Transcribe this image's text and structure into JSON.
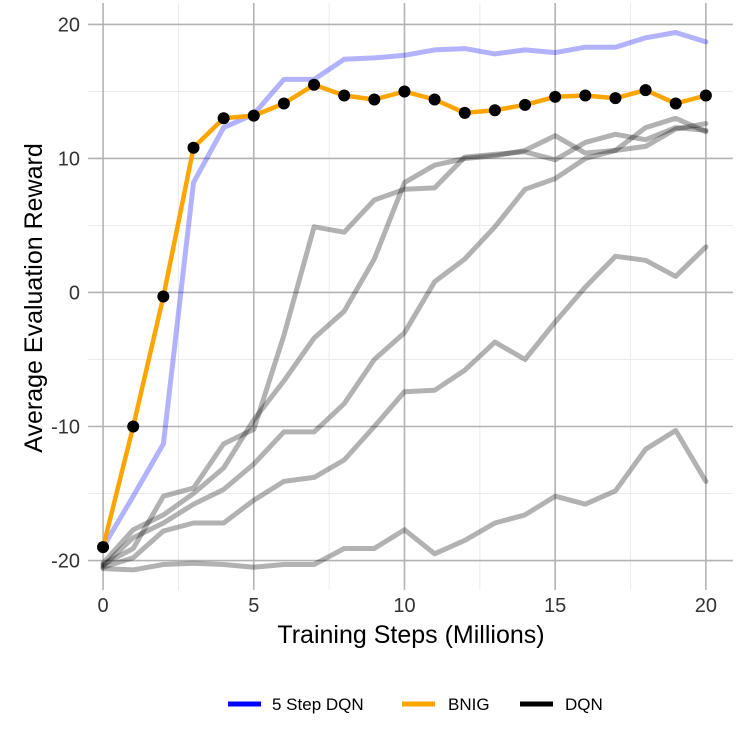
{
  "chart_data": {
    "type": "line",
    "xlabel": "Training Steps (Millions)",
    "ylabel": "Average Evaluation Reward",
    "xlim": [
      -0.5,
      20.9
    ],
    "ylim": [
      -22.2,
      21.6
    ],
    "x_ticks": [
      0,
      5,
      10,
      15,
      20
    ],
    "y_ticks": [
      -20,
      -10,
      0,
      10,
      20
    ],
    "x_tick_labels": [
      "0",
      "5",
      "10",
      "15",
      "20"
    ],
    "y_tick_labels": [
      "-20",
      "-10",
      "0",
      "10",
      "20"
    ],
    "grid": true,
    "legend_position": "bottom",
    "legend": [
      {
        "label": "5 Step DQN",
        "color": "#0000FF"
      },
      {
        "label": "BNIG",
        "color": "#FFA500"
      },
      {
        "label": "DQN",
        "color": "#000000"
      }
    ],
    "series": [
      {
        "name": "5 Step DQN",
        "color": "#0000FF",
        "opacity": 0.3,
        "markers": false,
        "x": [
          0,
          1,
          2,
          3,
          4,
          5,
          6,
          7,
          8,
          9,
          10,
          11,
          12,
          13,
          14,
          15,
          16,
          17,
          18,
          19,
          20
        ],
        "y": [
          -19,
          -15.2,
          -11.3,
          8.2,
          12.3,
          13.3,
          15.9,
          15.9,
          17.4,
          17.5,
          17.7,
          18.1,
          18.2,
          17.8,
          18.1,
          17.9,
          18.3,
          18.3,
          19.0,
          19.4,
          18.7
        ]
      },
      {
        "name": "BNIG",
        "color": "#FFA500",
        "opacity": 1.0,
        "markers": true,
        "x": [
          0,
          1,
          2,
          3,
          4,
          5,
          6,
          7,
          8,
          9,
          10,
          11,
          12,
          13,
          14,
          15,
          16,
          17,
          18,
          19,
          20
        ],
        "y": [
          -19,
          -10,
          -0.3,
          10.8,
          13.0,
          13.2,
          14.1,
          15.5,
          14.7,
          14.4,
          15.0,
          14.4,
          13.4,
          13.6,
          14.0,
          14.6,
          14.7,
          14.5,
          15.1,
          14.1,
          14.7
        ]
      },
      {
        "name": "DQN",
        "color": "#000000",
        "opacity": 0.3,
        "markers": false,
        "x": [
          0,
          1,
          2,
          3,
          4,
          5,
          6,
          7,
          8,
          9,
          10,
          11,
          12,
          13,
          14,
          15,
          16,
          17,
          18,
          19,
          20
        ],
        "y": [
          -20.3,
          -19.1,
          -15.2,
          -14.6,
          -11.3,
          -10.2,
          -3.2,
          4.9,
          4.5,
          6.9,
          7.7,
          7.8,
          10.1,
          10.3,
          10.5,
          9.9,
          11.2,
          11.8,
          11.4,
          12.3,
          12.1
        ]
      },
      {
        "name": "DQN",
        "color": "#000000",
        "opacity": 0.3,
        "markers": false,
        "x": [
          0,
          1,
          2,
          3,
          4,
          5,
          6,
          7,
          8,
          9,
          10,
          11,
          12,
          13,
          14,
          15,
          16,
          17,
          18,
          19,
          20
        ],
        "y": [
          -20.6,
          -20.7,
          -20.3,
          -20.2,
          -20.3,
          -20.5,
          -20.3,
          -20.3,
          -19.1,
          -19.1,
          -17.7,
          -19.5,
          -18.5,
          -17.2,
          -16.6,
          -15.2,
          -15.8,
          -14.8,
          -11.7,
          -10.3,
          -14.1
        ]
      },
      {
        "name": "DQN",
        "color": "#000000",
        "opacity": 0.3,
        "markers": false,
        "x": [
          0,
          1,
          2,
          3,
          4,
          5,
          6,
          7,
          8,
          9,
          10,
          11,
          12,
          13,
          14,
          15,
          16,
          17,
          18,
          19,
          20
        ],
        "y": [
          -20.4,
          -18.3,
          -17.2,
          -15.8,
          -14.7,
          -12.8,
          -10.4,
          -10.4,
          -8.3,
          -5.0,
          -3.0,
          0.8,
          2.5,
          4.9,
          7.7,
          8.5,
          10.0,
          10.6,
          10.9,
          12.2,
          12.6
        ]
      },
      {
        "name": "DQN",
        "color": "#000000",
        "opacity": 0.3,
        "markers": false,
        "x": [
          0,
          1,
          2,
          3,
          4,
          5,
          6,
          7,
          8,
          9,
          10,
          11,
          12,
          13,
          14,
          15,
          16,
          17,
          18,
          19,
          20
        ],
        "y": [
          -20.2,
          -17.7,
          -16.6,
          -15.0,
          -13.1,
          -9.5,
          -6.6,
          -3.4,
          -1.4,
          2.5,
          8.2,
          9.5,
          10.0,
          10.2,
          10.6,
          11.7,
          10.4,
          10.6,
          12.3,
          13.0,
          12.0
        ]
      },
      {
        "name": "DQN",
        "color": "#000000",
        "opacity": 0.3,
        "markers": false,
        "x": [
          0,
          1,
          2,
          3,
          4,
          5,
          6,
          7,
          8,
          9,
          10,
          11,
          12,
          13,
          14,
          15,
          16,
          17,
          18,
          19,
          20
        ],
        "y": [
          -20.5,
          -19.8,
          -17.8,
          -17.2,
          -17.2,
          -15.5,
          -14.1,
          -13.8,
          -12.5,
          -10.0,
          -7.4,
          -7.3,
          -5.8,
          -3.7,
          -5.0,
          -2.2,
          0.4,
          2.7,
          2.4,
          1.2,
          3.4
        ]
      }
    ]
  }
}
